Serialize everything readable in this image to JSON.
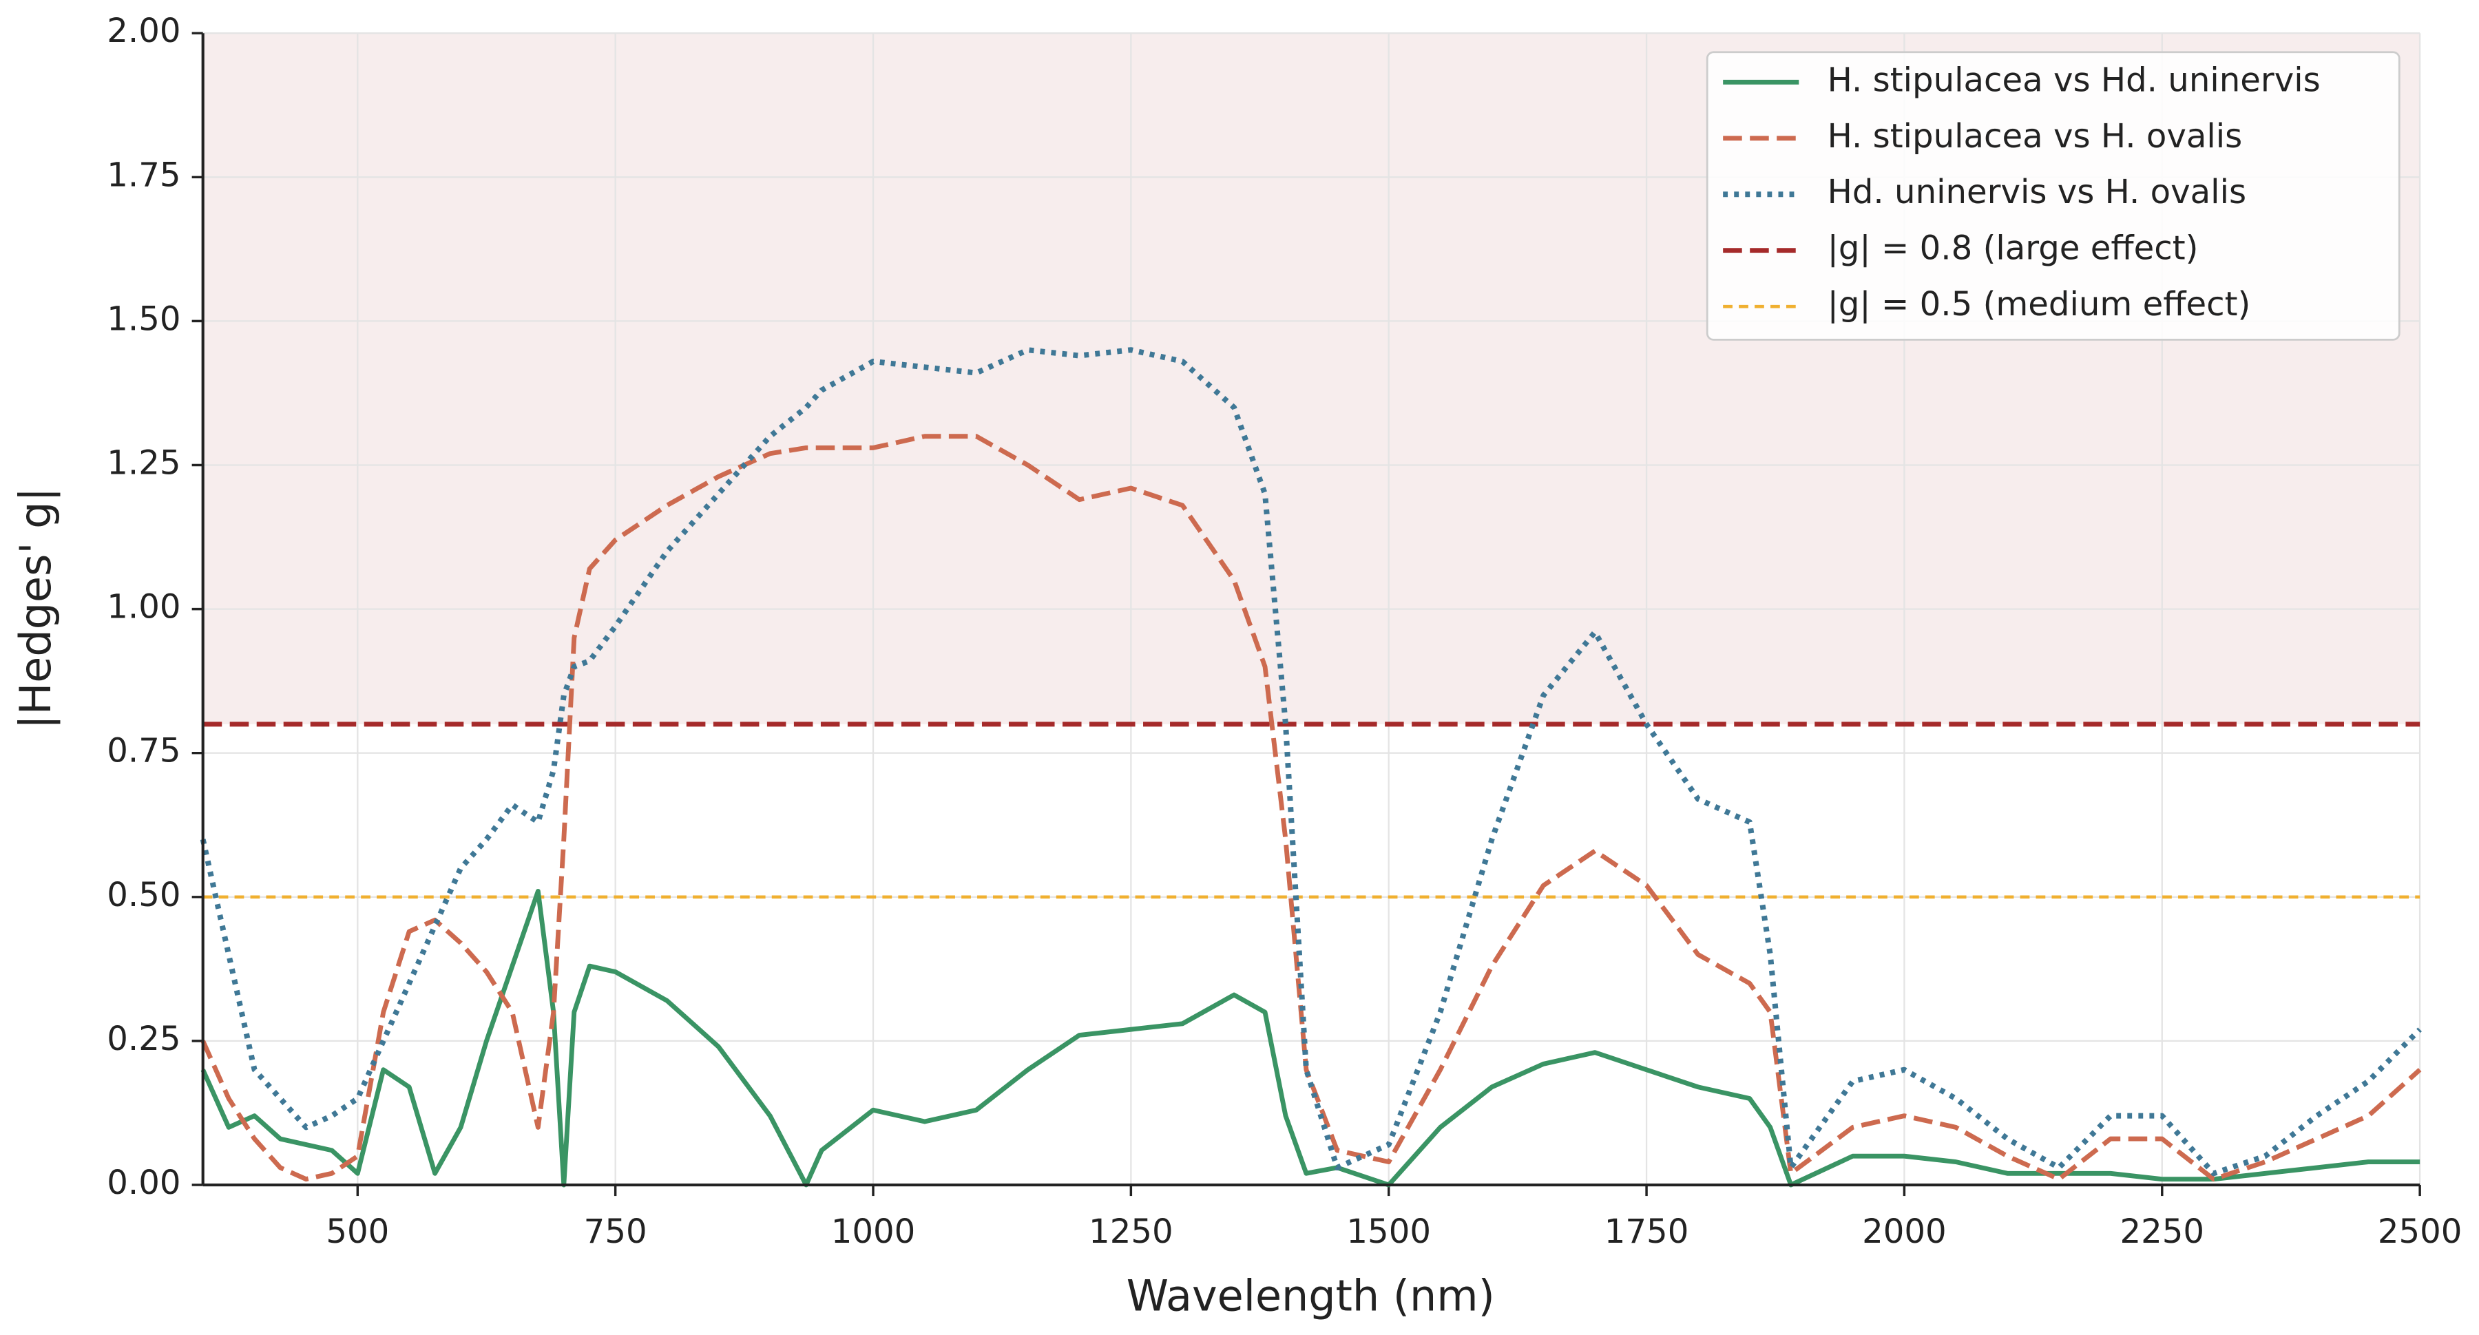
{
  "chart_data": {
    "type": "line",
    "x_label": "Wavelength (nm)",
    "y_label": "|Hedges' g|",
    "x": [
      350,
      375,
      400,
      425,
      450,
      475,
      500,
      525,
      550,
      575,
      600,
      625,
      650,
      675,
      690,
      700,
      710,
      725,
      750,
      800,
      850,
      900,
      935,
      950,
      1000,
      1050,
      1100,
      1150,
      1200,
      1250,
      1300,
      1350,
      1380,
      1400,
      1420,
      1450,
      1500,
      1550,
      1600,
      1650,
      1700,
      1750,
      1800,
      1850,
      1870,
      1890,
      1950,
      2000,
      2050,
      2100,
      2150,
      2200,
      2250,
      2300,
      2350,
      2400,
      2450,
      2500
    ],
    "series": [
      {
        "name": "H. stipulacea vs Hd. uninervis",
        "color": "#3a9464",
        "dash": "solid",
        "values": [
          0.2,
          0.1,
          0.12,
          0.08,
          0.07,
          0.06,
          0.02,
          0.2,
          0.17,
          0.02,
          0.1,
          0.25,
          0.38,
          0.51,
          0.3,
          0,
          0.3,
          0.38,
          0.37,
          0.32,
          0.24,
          0.12,
          0,
          0.06,
          0.13,
          0.11,
          0.13,
          0.2,
          0.26,
          0.27,
          0.28,
          0.33,
          0.3,
          0.12,
          0.02,
          0.03,
          0,
          0.1,
          0.17,
          0.21,
          0.23,
          0.2,
          0.17,
          0.15,
          0.1,
          0,
          0.05,
          0.05,
          0.04,
          0.02,
          0.02,
          0.02,
          0.01,
          0.01,
          0.02,
          0.03,
          0.04,
          0.04
        ]
      },
      {
        "name": "H. stipulacea vs H. ovalis",
        "color": "#cd6a4f",
        "dash": "dashed",
        "values": [
          0.25,
          0.15,
          0.08,
          0.03,
          0.01,
          0.02,
          0.05,
          0.3,
          0.44,
          0.46,
          0.42,
          0.37,
          0.3,
          0.1,
          0.3,
          0.6,
          0.95,
          1.07,
          1.12,
          1.18,
          1.23,
          1.27,
          1.28,
          1.28,
          1.28,
          1.3,
          1.3,
          1.25,
          1.19,
          1.21,
          1.18,
          1.05,
          0.9,
          0.6,
          0.2,
          0.06,
          0.04,
          0.2,
          0.38,
          0.52,
          0.58,
          0.52,
          0.4,
          0.35,
          0.3,
          0.02,
          0.1,
          0.12,
          0.1,
          0.05,
          0.01,
          0.08,
          0.08,
          0.01,
          0.04,
          0.08,
          0.12,
          0.2
        ]
      },
      {
        "name": "Hd. uninervis vs H. ovalis",
        "color": "#3f7896",
        "dash": "dotted",
        "values": [
          0.6,
          0.4,
          0.2,
          0.15,
          0.1,
          0.12,
          0.15,
          0.25,
          0.35,
          0.45,
          0.55,
          0.6,
          0.66,
          0.63,
          0.72,
          0.85,
          0.9,
          0.91,
          0.97,
          1.1,
          1.2,
          1.3,
          1.35,
          1.38,
          1.43,
          1.42,
          1.41,
          1.45,
          1.44,
          1.45,
          1.43,
          1.35,
          1.2,
          0.8,
          0.2,
          0.03,
          0.07,
          0.3,
          0.6,
          0.85,
          0.96,
          0.8,
          0.67,
          0.63,
          0.4,
          0.03,
          0.18,
          0.2,
          0.15,
          0.08,
          0.03,
          0.12,
          0.12,
          0.02,
          0.05,
          0.12,
          0.18,
          0.27
        ]
      }
    ],
    "reference_lines": [
      {
        "value": 0.8,
        "label": "|g| = 0.8 (large effect)",
        "color": "#a52a2a",
        "dash": "dashed",
        "shade_above_color": "#f7eded"
      },
      {
        "value": 0.5,
        "label": "|g| = 0.5 (medium effect)",
        "color": "#f0b030",
        "dash": "finedash"
      }
    ],
    "xlim": [
      350,
      2500
    ],
    "ylim": [
      0,
      2
    ],
    "xticks": [
      500,
      750,
      1000,
      1250,
      1500,
      1750,
      2000,
      2250,
      2500
    ],
    "yticks": [
      {
        "value": 0,
        "label": "0.00"
      },
      {
        "value": 0.25,
        "label": "0.25"
      },
      {
        "value": 0.5,
        "label": "0.50"
      },
      {
        "value": 0.75,
        "label": "0.75"
      },
      {
        "value": 1,
        "label": "1.00"
      },
      {
        "value": 1.25,
        "label": "1.25"
      },
      {
        "value": 1.5,
        "label": "1.50"
      },
      {
        "value": 1.75,
        "label": "1.75"
      },
      {
        "value": 2,
        "label": "2.00"
      }
    ],
    "grid": true,
    "legend": "upper right"
  }
}
